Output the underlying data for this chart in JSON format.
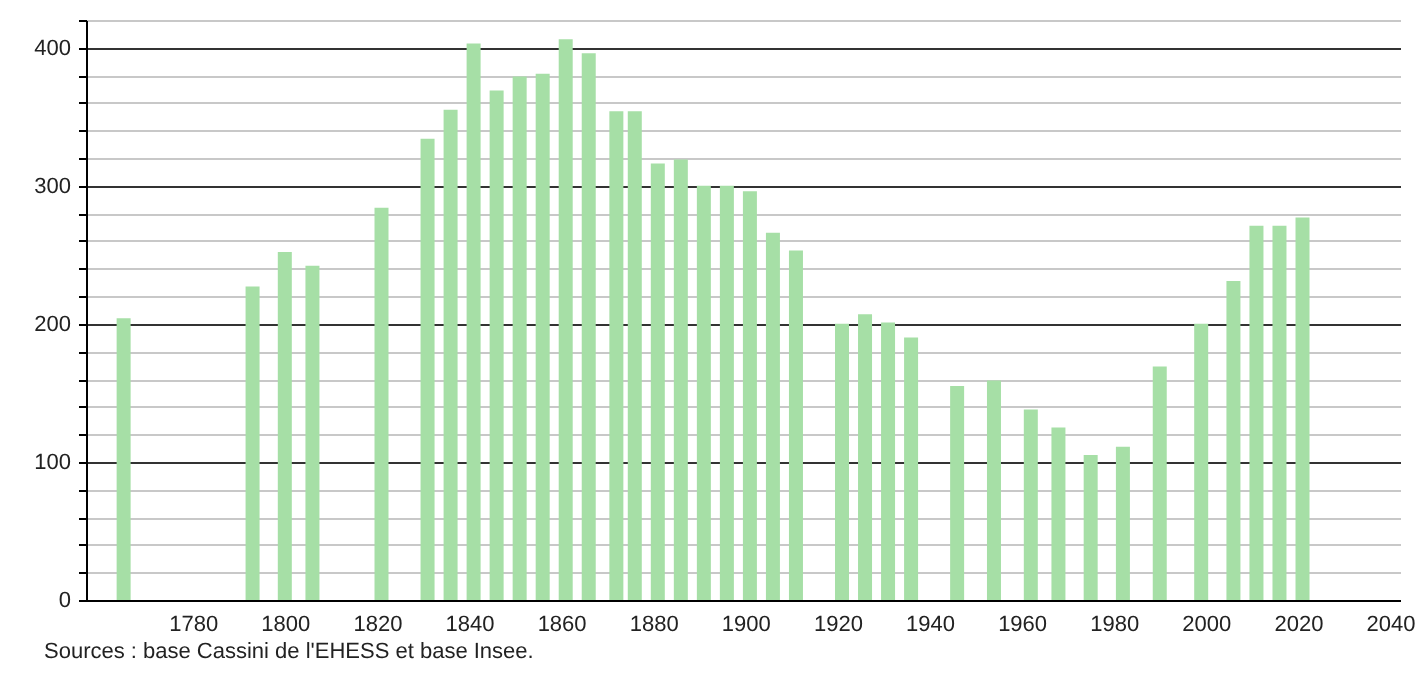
{
  "chart_data": {
    "type": "bar",
    "x": [
      1765,
      1793,
      1800,
      1806,
      1821,
      1831,
      1836,
      1841,
      1846,
      1851,
      1856,
      1861,
      1866,
      1872,
      1876,
      1881,
      1886,
      1891,
      1896,
      1901,
      1906,
      1911,
      1921,
      1926,
      1931,
      1936,
      1946,
      1954,
      1962,
      1968,
      1975,
      1982,
      1990,
      1999,
      2006,
      2011,
      2016,
      2021
    ],
    "values": [
      204,
      227,
      252,
      242,
      284,
      334,
      355,
      403,
      369,
      379,
      381,
      406,
      396,
      354,
      354,
      316,
      319,
      300,
      300,
      296,
      266,
      253,
      200,
      207,
      201,
      190,
      155,
      159,
      138,
      125,
      105,
      111,
      169,
      200,
      231,
      271,
      271,
      277
    ],
    "color": "#a6dfa6",
    "xlim": [
      1759,
      2040
    ],
    "xticks": [
      1780,
      1800,
      1820,
      1840,
      1860,
      1880,
      1900,
      1920,
      1940,
      1960,
      1980,
      2000,
      2020,
      2040
    ],
    "ylim": [
      0,
      420
    ],
    "yticks": [
      0,
      {
        "value": 20,
        "label": null
      },
      {
        "value": 40,
        "label": null
      },
      {
        "value": 60,
        "label": null
      },
      {
        "value": 80,
        "label": null
      },
      100,
      {
        "value": 120,
        "label": null
      },
      {
        "value": 140,
        "label": null
      },
      {
        "value": 160,
        "label": null
      },
      {
        "value": 180,
        "label": null
      },
      200,
      {
        "value": 220,
        "label": null
      },
      {
        "value": 240,
        "label": null
      },
      {
        "value": 260,
        "label": null
      },
      {
        "value": 280,
        "label": null
      },
      300,
      {
        "value": 320,
        "label": null
      },
      {
        "value": 340,
        "label": null
      },
      {
        "value": 360,
        "label": null
      },
      {
        "value": 380,
        "label": null
      },
      400,
      {
        "value": 420,
        "label": null
      }
    ],
    "grid": "y",
    "annotations": [
      "Sources : base Cassini de l'EHESS et base Insee."
    ]
  }
}
